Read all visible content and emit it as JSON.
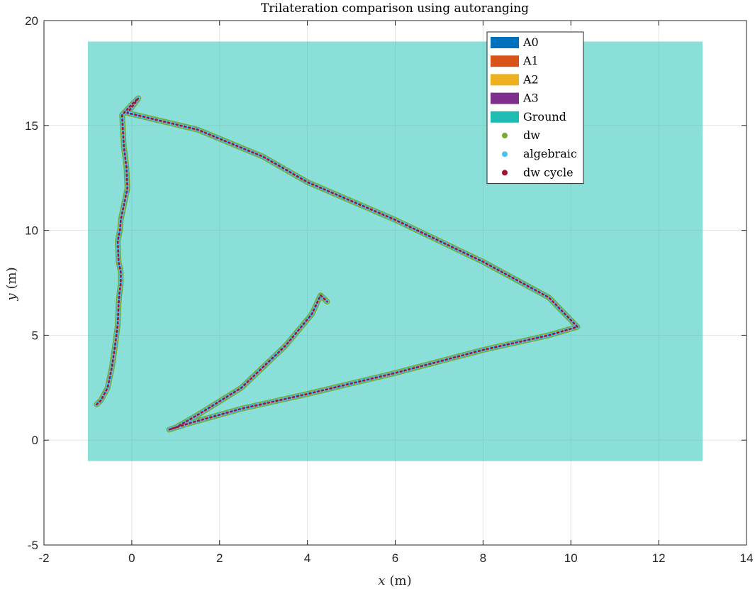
{
  "chart_data": {
    "type": "line",
    "title": "Trilateration comparison using autoranging",
    "xlabel_var": "x",
    "xlabel_unit": "(m)",
    "ylabel_var": "y",
    "ylabel_unit": "(m)",
    "xlim": [
      -2,
      14
    ],
    "ylim": [
      -5,
      20
    ],
    "xticks": [
      -2,
      0,
      2,
      4,
      6,
      8,
      10,
      12,
      14
    ],
    "yticks": [
      -5,
      0,
      5,
      10,
      15,
      20
    ],
    "grid": true,
    "legend_position": "top-right",
    "ground": {
      "name": "Ground",
      "x": [
        -1,
        13
      ],
      "y": [
        -1,
        19
      ],
      "color": "#8ae0d9",
      "legend_color": "#1fbcb3"
    },
    "anchors": [
      {
        "name": "A0",
        "color": "#0072bd"
      },
      {
        "name": "A1",
        "color": "#d95319"
      },
      {
        "name": "A2",
        "color": "#edb120"
      },
      {
        "name": "A3",
        "color": "#7e2f8e"
      }
    ],
    "trajectory": {
      "x": [
        -0.8,
        -0.7,
        -0.55,
        -0.45,
        -0.38,
        -0.32,
        -0.3,
        -0.28,
        -0.25,
        -0.25,
        -0.3,
        -0.32,
        -0.27,
        -0.25,
        -0.2,
        -0.15,
        -0.1,
        -0.12,
        -0.18,
        -0.22,
        0.0,
        0.15,
        0.05,
        -0.1,
        1.5,
        3.0,
        4.0,
        6.0,
        8.0,
        9.5,
        10.15,
        9.5,
        8.0,
        6.0,
        4.0,
        2.5,
        1.3,
        0.85,
        1.0,
        1.5,
        2.5,
        3.5,
        4.1,
        4.3,
        4.45
      ],
      "y": [
        1.7,
        1.9,
        2.5,
        3.5,
        4.5,
        5.5,
        6.5,
        7.0,
        7.5,
        8.0,
        8.5,
        9.5,
        10.0,
        10.5,
        11.0,
        11.5,
        12.0,
        13.0,
        14.0,
        15.5,
        16.0,
        16.3,
        16.0,
        15.6,
        14.8,
        13.5,
        12.3,
        10.5,
        8.5,
        6.8,
        5.4,
        5.0,
        4.3,
        3.2,
        2.2,
        1.5,
        0.8,
        0.5,
        0.6,
        1.2,
        2.5,
        4.5,
        6.0,
        6.9,
        6.6
      ]
    },
    "series": [
      {
        "name": "dw",
        "color": "#77ac30"
      },
      {
        "name": "algebraic",
        "color": "#4dbeee"
      },
      {
        "name": "dw cycle",
        "color": "#a2142f"
      }
    ]
  }
}
